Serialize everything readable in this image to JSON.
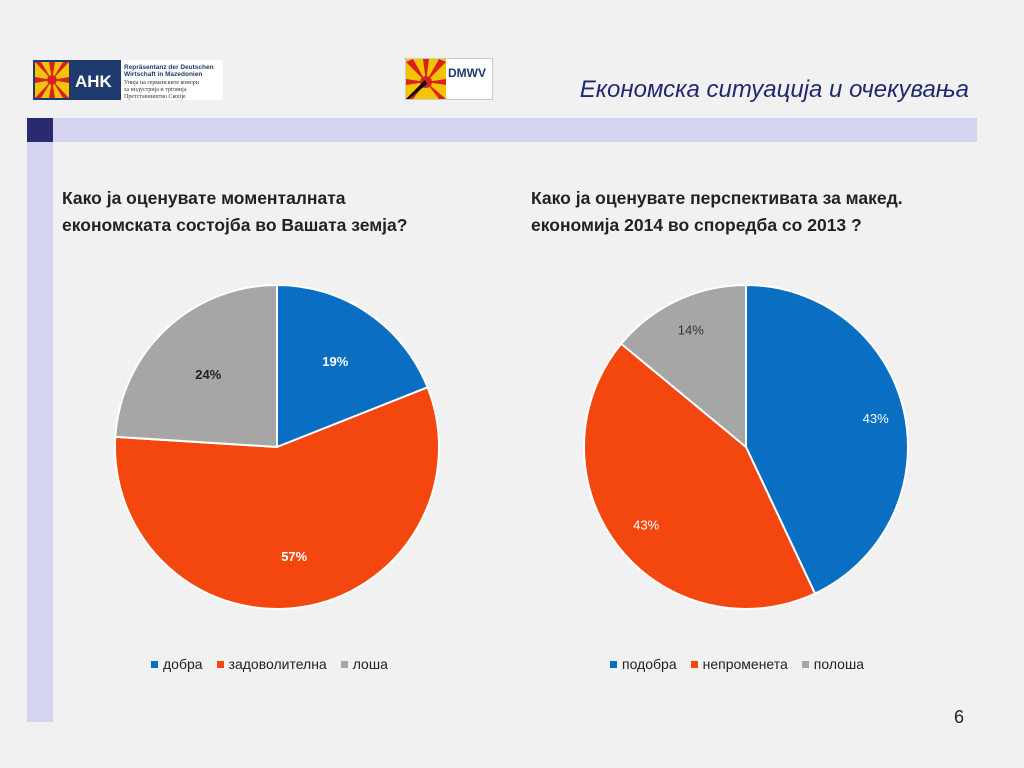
{
  "header": {
    "title": "Економска ситуација и очекувања",
    "logo_ahk": {
      "mark": "AHK",
      "lines": [
        "Repräsentanz der Deutschen",
        "Wirtschaft in Mazedonien",
        "Унија на германските комори",
        "за индустрија и трговија",
        "Претставништво Скопје"
      ]
    },
    "logo_dmwv": {
      "mark": "DMWV"
    }
  },
  "colors": {
    "blue": "#0a6fc2",
    "orange": "#f4460f",
    "gray": "#a6a6a6",
    "band": "#d4d4f0",
    "band_dark": "#2a2a72",
    "title": "#1f2a6e"
  },
  "page_number": "6",
  "chart_data": [
    {
      "type": "pie",
      "title_lines": [
        "Како ја оценувате моменталната",
        "економската состојба во Вашата земја?"
      ],
      "categories": [
        "добра",
        "задоволителна",
        "лоша"
      ],
      "values": [
        19,
        57,
        24
      ],
      "labels": [
        "19%",
        "57%",
        "24%"
      ],
      "colors": [
        "#0a6fc2",
        "#f4460f",
        "#a6a6a6"
      ],
      "label_colors": [
        "#ffffff",
        "#ffffff",
        "#222222"
      ],
      "label_bold": true,
      "legend_position": "bottom"
    },
    {
      "type": "pie",
      "title_lines": [
        "Како ја оценувате перспективата за макед.",
        "економија 2014 во споредба со 2013 ?"
      ],
      "categories": [
        "подобра",
        "непроменета",
        "полоша"
      ],
      "values": [
        43,
        43,
        14
      ],
      "labels": [
        "43%",
        "43%",
        "14%"
      ],
      "colors": [
        "#0a6fc2",
        "#f4460f",
        "#a6a6a6"
      ],
      "label_colors": [
        "#ffffff",
        "#ffffff",
        "#333333"
      ],
      "label_bold": false,
      "legend_position": "bottom"
    }
  ]
}
